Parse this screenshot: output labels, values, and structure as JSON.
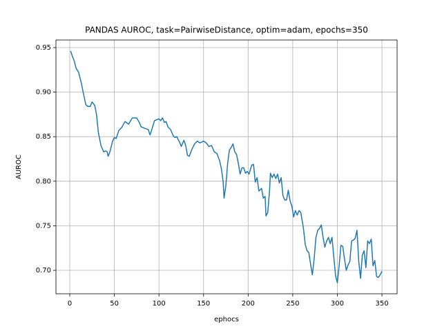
{
  "chart_data": {
    "type": "line",
    "title": "PANDAS AUROC, task=PairwiseDistance, optim=adam, epochs=350",
    "x_label": "ephocs",
    "y_label": "AUROC",
    "series": [
      {
        "color": "#1f77b4",
        "x": [
          1,
          3,
          5,
          7,
          10,
          13,
          15,
          18,
          20,
          23,
          25,
          28,
          30,
          32,
          35,
          38,
          40,
          42,
          43,
          45,
          48,
          50,
          52,
          55,
          58,
          62,
          66,
          70,
          75,
          78,
          80,
          85,
          88,
          90,
          92,
          95,
          100,
          102,
          104,
          106,
          108,
          110,
          113,
          116,
          118,
          120,
          123,
          125,
          128,
          130,
          132,
          134,
          137,
          140,
          143,
          146,
          150,
          153,
          156,
          159,
          162,
          165,
          168,
          170,
          172,
          173,
          175,
          177,
          179,
          181,
          183,
          185,
          187,
          189,
          191,
          193,
          195,
          197,
          199,
          201,
          204,
          206,
          208,
          210,
          212,
          215,
          217,
          219,
          220,
          222,
          224,
          225,
          227,
          229,
          231,
          233,
          235,
          237,
          239,
          241,
          243,
          245,
          247,
          249,
          251,
          253,
          255,
          257,
          259,
          262,
          264,
          266,
          268,
          270,
          272,
          274,
          276,
          278,
          280,
          282,
          284,
          286,
          288,
          290,
          292,
          294,
          296,
          298,
          300,
          302,
          304,
          306,
          308,
          310,
          312,
          314,
          316,
          318,
          320,
          322,
          324,
          326,
          328,
          330,
          332,
          334,
          336,
          338,
          340,
          342,
          344,
          346,
          348,
          350
        ],
        "values": [
          0.946,
          0.94,
          0.935,
          0.927,
          0.922,
          0.91,
          0.9,
          0.886,
          0.884,
          0.884,
          0.889,
          0.885,
          0.875,
          0.855,
          0.84,
          0.833,
          0.834,
          0.833,
          0.828,
          0.833,
          0.845,
          0.849,
          0.848,
          0.857,
          0.86,
          0.867,
          0.864,
          0.871,
          0.871,
          0.866,
          0.861,
          0.859,
          0.858,
          0.852,
          0.858,
          0.868,
          0.87,
          0.868,
          0.871,
          0.866,
          0.867,
          0.861,
          0.858,
          0.851,
          0.849,
          0.85,
          0.844,
          0.839,
          0.846,
          0.84,
          0.829,
          0.828,
          0.836,
          0.842,
          0.845,
          0.843,
          0.845,
          0.843,
          0.839,
          0.84,
          0.833,
          0.831,
          0.823,
          0.814,
          0.799,
          0.781,
          0.795,
          0.82,
          0.835,
          0.838,
          0.842,
          0.833,
          0.83,
          0.82,
          0.808,
          0.815,
          0.815,
          0.809,
          0.811,
          0.808,
          0.818,
          0.819,
          0.799,
          0.804,
          0.789,
          0.792,
          0.781,
          0.783,
          0.761,
          0.765,
          0.79,
          0.809,
          0.804,
          0.808,
          0.803,
          0.808,
          0.798,
          0.804,
          0.784,
          0.779,
          0.779,
          0.79,
          0.778,
          0.772,
          0.76,
          0.767,
          0.762,
          0.767,
          0.765,
          0.747,
          0.729,
          0.722,
          0.72,
          0.707,
          0.695,
          0.713,
          0.737,
          0.745,
          0.747,
          0.751,
          0.737,
          0.726,
          0.733,
          0.737,
          0.73,
          0.737,
          0.715,
          0.694,
          0.686,
          0.705,
          0.728,
          0.727,
          0.713,
          0.7,
          0.706,
          0.71,
          0.733,
          0.734,
          0.736,
          0.745,
          0.71,
          0.691,
          0.717,
          0.722,
          0.703,
          0.733,
          0.73,
          0.735,
          0.705,
          0.711,
          0.693,
          0.692,
          0.695,
          0.699
        ]
      }
    ],
    "xlim": [
      -15.5,
      367
    ],
    "ylim": [
      0.6737,
      0.9585
    ],
    "xticks": [
      0,
      50,
      100,
      150,
      200,
      250,
      300,
      350
    ],
    "yticks": [
      {
        "value": 0.7,
        "label": "0.70"
      },
      0.75,
      {
        "value": 0.8,
        "label": "0.80"
      },
      0.85,
      {
        "value": 0.9,
        "label": "0.90"
      },
      0.95
    ],
    "grid": true
  }
}
